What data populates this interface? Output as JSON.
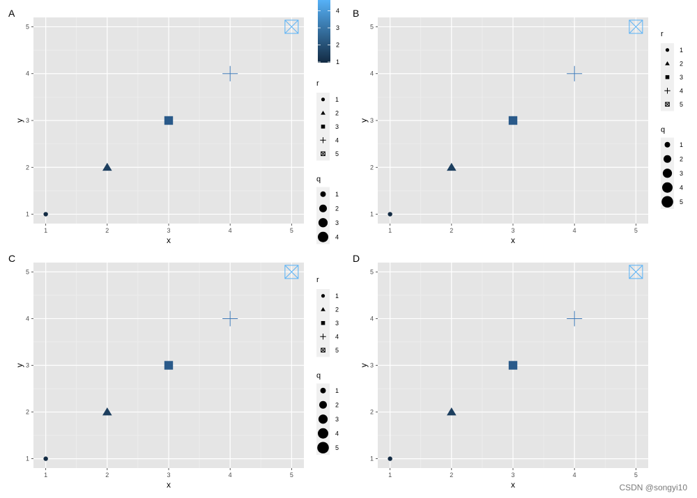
{
  "watermark": "CSDN @songyi10",
  "palette": {
    "panel_bg": "#e5e5e5",
    "grid_major": "#ffffff",
    "grid_minor": "#f0f0f0",
    "legend_key_bg": "#f0f0f0",
    "gradient_low": "#132b43",
    "gradient_high": "#56b1f7",
    "point_colors": [
      "#132b43",
      "#1d3f5f",
      "#2a5a8a",
      "#3f7ab8",
      "#56b1f7"
    ]
  },
  "chart_data": [
    {
      "type": "scatter",
      "tag": "A",
      "xlabel": "x",
      "ylabel": "y",
      "xlim": [
        1,
        5
      ],
      "ylim": [
        1,
        5
      ],
      "x_ticks": [
        "1",
        "2",
        "3",
        "4",
        "5"
      ],
      "y_ticks": [
        "1",
        "2",
        "3",
        "4",
        "5"
      ],
      "grid": true,
      "points": [
        {
          "x": 1,
          "y": 1,
          "r": 1,
          "q": 1,
          "color_value": 1
        },
        {
          "x": 2,
          "y": 2,
          "r": 2,
          "q": 2,
          "color_value": 2
        },
        {
          "x": 3,
          "y": 3,
          "r": 3,
          "q": 3,
          "color_value": 3
        },
        {
          "x": 4,
          "y": 4,
          "r": 4,
          "q": 4,
          "color_value": 4
        },
        {
          "x": 5,
          "y": 5,
          "r": 5,
          "q": 5,
          "color_value": 5
        }
      ],
      "legends": {
        "colorbar": {
          "title": "",
          "ticks": [
            "1",
            "2",
            "3",
            "4"
          ]
        },
        "shape": {
          "title": "r",
          "labels": [
            "1",
            "2",
            "3",
            "4",
            "5"
          ]
        },
        "size": {
          "title": "q",
          "labels": [
            "1",
            "2",
            "3",
            "4"
          ]
        }
      }
    },
    {
      "type": "scatter",
      "tag": "B",
      "xlabel": "x",
      "ylabel": "y",
      "xlim": [
        1,
        5
      ],
      "ylim": [
        1,
        5
      ],
      "x_ticks": [
        "1",
        "2",
        "3",
        "4",
        "5"
      ],
      "y_ticks": [
        "1",
        "2",
        "3",
        "4",
        "5"
      ],
      "grid": true,
      "points": [
        {
          "x": 1,
          "y": 1,
          "r": 1,
          "q": 1,
          "color_value": 1
        },
        {
          "x": 2,
          "y": 2,
          "r": 2,
          "q": 2,
          "color_value": 2
        },
        {
          "x": 3,
          "y": 3,
          "r": 3,
          "q": 3,
          "color_value": 3
        },
        {
          "x": 4,
          "y": 4,
          "r": 4,
          "q": 4,
          "color_value": 4
        },
        {
          "x": 5,
          "y": 5,
          "r": 5,
          "q": 5,
          "color_value": 5
        }
      ],
      "legends": {
        "shape": {
          "title": "r",
          "labels": [
            "1",
            "2",
            "3",
            "4",
            "5"
          ]
        },
        "size": {
          "title": "q",
          "labels": [
            "1",
            "2",
            "3",
            "4",
            "5"
          ]
        }
      }
    },
    {
      "type": "scatter",
      "tag": "C",
      "xlabel": "x",
      "ylabel": "y",
      "xlim": [
        1,
        5
      ],
      "ylim": [
        1,
        5
      ],
      "x_ticks": [
        "1",
        "2",
        "3",
        "4",
        "5"
      ],
      "y_ticks": [
        "1",
        "2",
        "3",
        "4",
        "5"
      ],
      "grid": true,
      "points": [
        {
          "x": 1,
          "y": 1,
          "r": 1,
          "q": 1,
          "color_value": 1
        },
        {
          "x": 2,
          "y": 2,
          "r": 2,
          "q": 2,
          "color_value": 2
        },
        {
          "x": 3,
          "y": 3,
          "r": 3,
          "q": 3,
          "color_value": 3
        },
        {
          "x": 4,
          "y": 4,
          "r": 4,
          "q": 4,
          "color_value": 4
        },
        {
          "x": 5,
          "y": 5,
          "r": 5,
          "q": 5,
          "color_value": 5
        }
      ],
      "legends": {
        "shape": {
          "title": "r",
          "labels": [
            "1",
            "2",
            "3",
            "4",
            "5"
          ]
        },
        "size": {
          "title": "q",
          "labels": [
            "1",
            "2",
            "3",
            "4",
            "5"
          ]
        }
      }
    },
    {
      "type": "scatter",
      "tag": "D",
      "xlabel": "x",
      "ylabel": "y",
      "xlim": [
        1,
        5
      ],
      "ylim": [
        1,
        5
      ],
      "x_ticks": [
        "1",
        "2",
        "3",
        "4",
        "5"
      ],
      "y_ticks": [
        "1",
        "2",
        "3",
        "4",
        "5"
      ],
      "grid": true,
      "points": [
        {
          "x": 1,
          "y": 1,
          "r": 1,
          "q": 1,
          "color_value": 1
        },
        {
          "x": 2,
          "y": 2,
          "r": 2,
          "q": 2,
          "color_value": 2
        },
        {
          "x": 3,
          "y": 3,
          "r": 3,
          "q": 3,
          "color_value": 3
        },
        {
          "x": 4,
          "y": 4,
          "r": 4,
          "q": 4,
          "color_value": 4
        },
        {
          "x": 5,
          "y": 5,
          "r": 5,
          "q": 5,
          "color_value": 5
        }
      ],
      "legends": {}
    }
  ]
}
